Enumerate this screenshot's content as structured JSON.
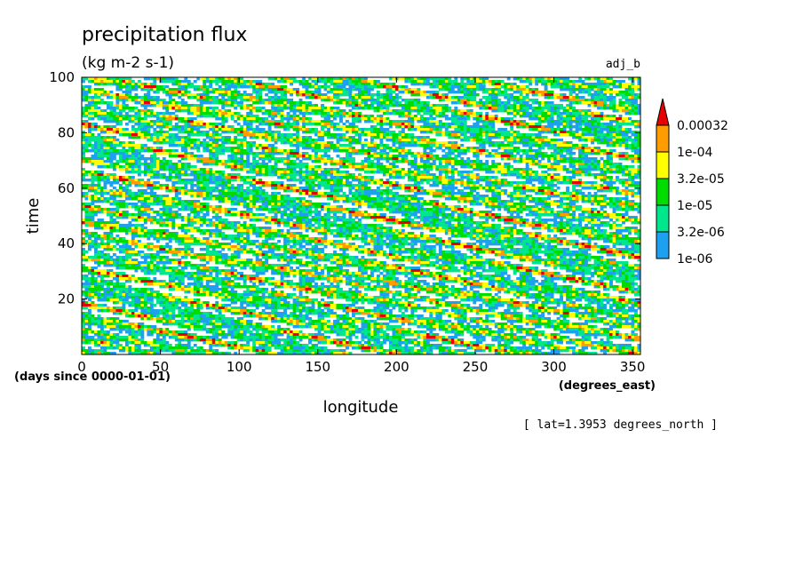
{
  "chart_data": {
    "type": "heatmap",
    "title": "precipitation flux",
    "subtitle": "(kg m-2 s-1)",
    "run_label": "adj_b",
    "xlabel": "longitude",
    "ylabel": "time",
    "x_units": "(degrees_east)",
    "y_units": "(days since 0000-01-01)",
    "xlim": [
      0,
      355
    ],
    "ylim": [
      0,
      100
    ],
    "x_ticks": [
      0,
      50,
      100,
      150,
      200,
      250,
      300,
      350
    ],
    "y_ticks": [
      20,
      40,
      60,
      80,
      100
    ],
    "colorbar": {
      "levels": [
        "1e-06",
        "3.2e-06",
        "1e-05",
        "3.2e-05",
        "1e-04",
        "0.00032"
      ],
      "level_values": [
        1e-06,
        3.2e-06,
        1e-05,
        3.2e-05,
        0.0001,
        0.00032
      ],
      "colors": [
        "#ffffff",
        "#1ea0f0",
        "#00e68c",
        "#00dc00",
        "#ffff00",
        "#ff9c00",
        "#e60000"
      ],
      "extend": "max"
    },
    "footnote": "[ lat=1.3953 degrees_north ]",
    "grid": false
  }
}
